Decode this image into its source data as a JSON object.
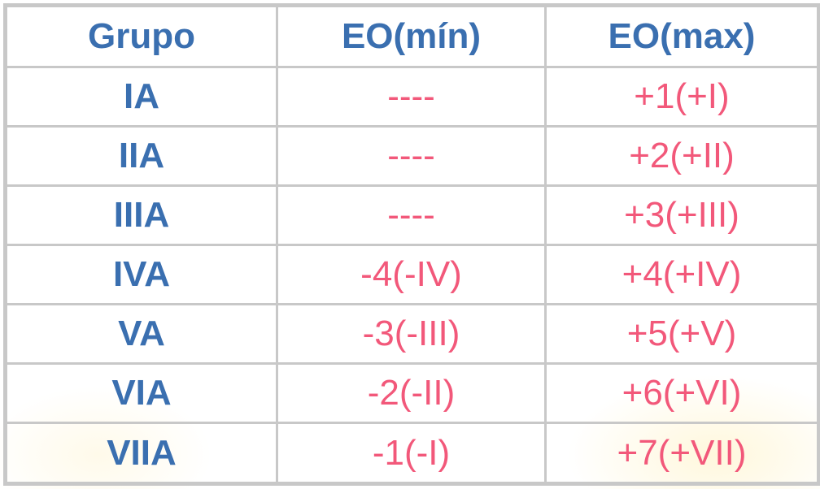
{
  "headers": [
    "Grupo",
    "EO(mín)",
    "EO(max)"
  ],
  "rows": [
    {
      "grupo": "IA",
      "min": "----",
      "max": "+1(+I)"
    },
    {
      "grupo": "IIA",
      "min": "----",
      "max": "+2(+II)"
    },
    {
      "grupo": "IIIA",
      "min": "----",
      "max": "+3(+III)"
    },
    {
      "grupo": "IVA",
      "min": "-4(-IV)",
      "max": "+4(+IV)"
    },
    {
      "grupo": "VA",
      "min": "-3(-III)",
      "max": "+5(+V)"
    },
    {
      "grupo": "VIA",
      "min": "-2(-II)",
      "max": "+6(+VI)"
    },
    {
      "grupo": "VIIA",
      "min": "-1(-I)",
      "max": "+7(+VII)"
    }
  ],
  "colors": {
    "header_text": "#3a6fb0",
    "value_text": "#f2587a",
    "border": "#c8c8c8"
  }
}
